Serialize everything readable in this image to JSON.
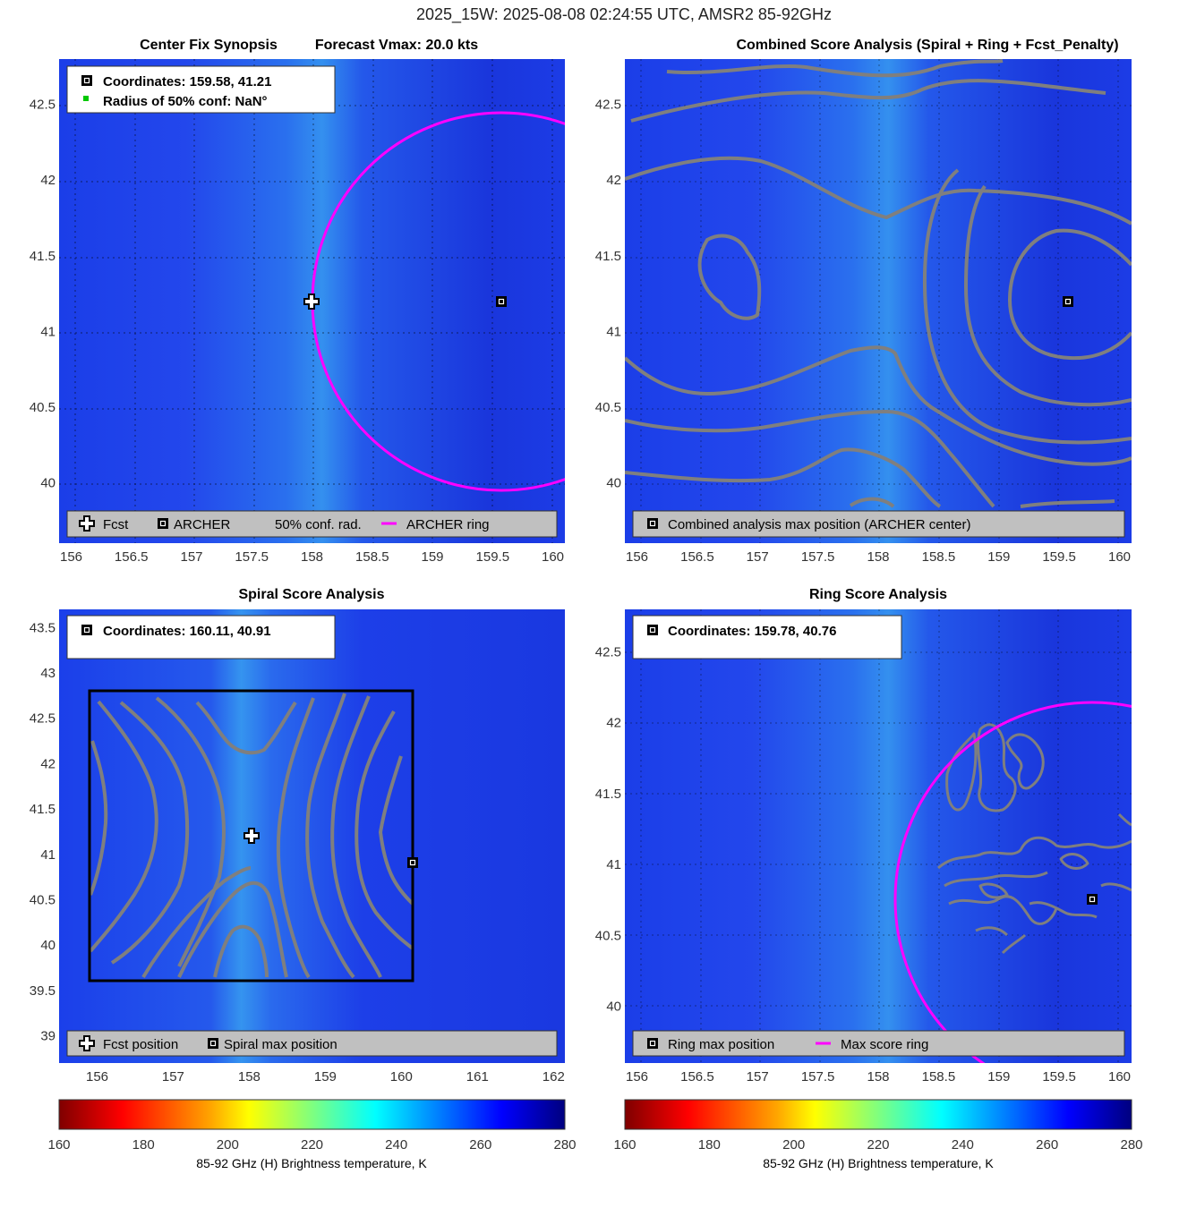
{
  "suptitle": "2025_15W: 2025-08-08 02:24:55 UTC, AMSR2 85-92GHz",
  "colors": {
    "bg_blue": "#1f3cf0",
    "band_blue": "#2f86f0",
    "ring": "#ff00ff",
    "contour": "#7f7f7f",
    "legend_bg": "#c0c0c0",
    "green_dot": "#00c800"
  },
  "panels": [
    {
      "id": "synopsis",
      "title_left": "Center Fix Synopsis",
      "title_right": "Forecast Vmax: 20.0 kts",
      "info": [
        "Coordinates: 159.58, 41.21",
        "Radius of 50% conf: NaN°"
      ],
      "legend": [
        "Fcst",
        "ARCHER",
        "50% conf. rad.",
        "ARCHER ring"
      ]
    },
    {
      "id": "combined",
      "title": "Combined Score Analysis (Spiral + Ring + Fcst_Penalty)",
      "legend": [
        "Combined analysis max position (ARCHER center)"
      ]
    },
    {
      "id": "spiral",
      "title": "Spiral Score Analysis",
      "info": [
        "Coordinates: 160.11, 40.91"
      ],
      "legend": [
        "Fcst position",
        "Spiral max position"
      ]
    },
    {
      "id": "ring",
      "title": "Ring Score Analysis",
      "info": [
        "Coordinates: 159.78, 40.76"
      ],
      "legend": [
        "Ring max position",
        "Max score ring"
      ]
    }
  ],
  "chart_data": [
    {
      "type": "heatmap",
      "title": "Center Fix Synopsis    Forecast Vmax: 20.0 kts",
      "xlim": [
        155.9,
        160.1
      ],
      "ylim": [
        39.6,
        42.8
      ],
      "xticks": [
        "156",
        "156.5",
        "157",
        "157.5",
        "158",
        "158.5",
        "159",
        "159.5",
        "160"
      ],
      "yticks": [
        "40",
        "40.5",
        "41",
        "41.5",
        "42",
        "42.5"
      ],
      "markers": {
        "fcst": [
          158.0,
          41.2
        ],
        "archer": [
          159.58,
          41.21
        ]
      },
      "ring": {
        "center": [
          159.58,
          41.21
        ],
        "radius_deg": 1.6
      }
    },
    {
      "type": "heatmap",
      "title": "Combined Score Analysis (Spiral + Ring + Fcst_Penalty)",
      "xlim": [
        155.9,
        160.1
      ],
      "ylim": [
        39.6,
        42.8
      ],
      "xticks": [
        "156",
        "156.5",
        "157",
        "157.5",
        "158",
        "158.5",
        "159",
        "159.5",
        "160"
      ],
      "yticks": [
        "40",
        "40.5",
        "41",
        "41.5",
        "42",
        "42.5"
      ],
      "markers": {
        "max": [
          159.58,
          41.21
        ]
      },
      "contours": "combined score contours (gray)"
    },
    {
      "type": "heatmap",
      "title": "Spiral Score Analysis",
      "xlim": [
        155.5,
        162.15
      ],
      "ylim": [
        38.7,
        43.7
      ],
      "xticks": [
        "156",
        "157",
        "158",
        "159",
        "160",
        "161",
        "162"
      ],
      "yticks": [
        "39",
        "39.5",
        "40",
        "40.5",
        "41",
        "41.5",
        "42",
        "42.5",
        "43",
        "43.5"
      ],
      "markers": {
        "fcst": [
          158.0,
          41.2
        ],
        "spiral_max": [
          160.11,
          40.91
        ]
      },
      "box": [
        [
          155.9,
          39.6
        ],
        [
          160.1,
          42.8
        ]
      ]
    },
    {
      "type": "heatmap",
      "title": "Ring Score Analysis",
      "xlim": [
        155.9,
        160.1
      ],
      "ylim": [
        39.6,
        42.8
      ],
      "xticks": [
        "156",
        "156.5",
        "157",
        "157.5",
        "158",
        "158.5",
        "159",
        "159.5",
        "160"
      ],
      "yticks": [
        "40",
        "40.5",
        "41",
        "41.5",
        "42",
        "42.5"
      ],
      "markers": {
        "ring_max": [
          159.78,
          40.76
        ]
      },
      "ring": {
        "center": [
          159.78,
          40.76
        ],
        "radius_deg": 1.6
      }
    }
  ],
  "colorbar": {
    "label": "85-92 GHz (H) Brightness temperature, K",
    "ticks": [
      "160",
      "180",
      "200",
      "220",
      "240",
      "260",
      "280"
    ],
    "range": [
      160,
      280
    ],
    "stops": [
      "#7f0000",
      "#ff0000",
      "#ffa500",
      "#ffff00",
      "#7fff7f",
      "#00ffff",
      "#007fff",
      "#0000ff",
      "#00007f"
    ]
  }
}
